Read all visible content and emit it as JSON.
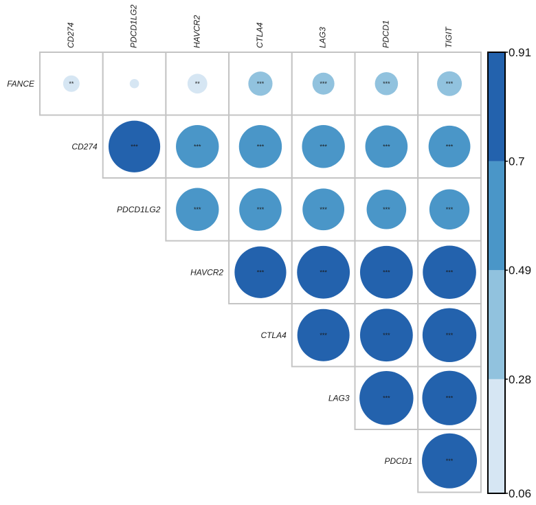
{
  "chart_data": {
    "type": "heatmap",
    "subtype": "correlation-circle-upper-triangle",
    "title": "",
    "columns": [
      "CD274",
      "PDCD1LG2",
      "HAVCR2",
      "CTLA4",
      "LAG3",
      "PDCD1",
      "TIGIT"
    ],
    "rows": [
      "FANCE",
      "CD274",
      "PDCD1LG2",
      "HAVCR2",
      "CTLA4",
      "LAG3",
      "PDCD1"
    ],
    "cells": [
      {
        "row": "FANCE",
        "col": "CD274",
        "value": 0.21,
        "sig": "**"
      },
      {
        "row": "FANCE",
        "col": "PDCD1LG2",
        "value": 0.08,
        "sig": ""
      },
      {
        "row": "FANCE",
        "col": "HAVCR2",
        "value": 0.27,
        "sig": "**"
      },
      {
        "row": "FANCE",
        "col": "CTLA4",
        "value": 0.35,
        "sig": "***"
      },
      {
        "row": "FANCE",
        "col": "LAG3",
        "value": 0.31,
        "sig": "***"
      },
      {
        "row": "FANCE",
        "col": "PDCD1",
        "value": 0.33,
        "sig": "***"
      },
      {
        "row": "FANCE",
        "col": "TIGIT",
        "value": 0.36,
        "sig": "***"
      },
      {
        "row": "CD274",
        "col": "PDCD1LG2",
        "value": 0.85,
        "sig": "***"
      },
      {
        "row": "CD274",
        "col": "HAVCR2",
        "value": 0.69,
        "sig": "***"
      },
      {
        "row": "CD274",
        "col": "CTLA4",
        "value": 0.69,
        "sig": "***"
      },
      {
        "row": "CD274",
        "col": "LAG3",
        "value": 0.69,
        "sig": "***"
      },
      {
        "row": "CD274",
        "col": "PDCD1",
        "value": 0.68,
        "sig": "***"
      },
      {
        "row": "CD274",
        "col": "TIGIT",
        "value": 0.67,
        "sig": "***"
      },
      {
        "row": "PDCD1LG2",
        "col": "HAVCR2",
        "value": 0.69,
        "sig": "***"
      },
      {
        "row": "PDCD1LG2",
        "col": "CTLA4",
        "value": 0.68,
        "sig": "***"
      },
      {
        "row": "PDCD1LG2",
        "col": "LAG3",
        "value": 0.67,
        "sig": "***"
      },
      {
        "row": "PDCD1LG2",
        "col": "PDCD1",
        "value": 0.63,
        "sig": "***"
      },
      {
        "row": "PDCD1LG2",
        "col": "TIGIT",
        "value": 0.64,
        "sig": "***"
      },
      {
        "row": "HAVCR2",
        "col": "CTLA4",
        "value": 0.85,
        "sig": "***"
      },
      {
        "row": "HAVCR2",
        "col": "LAG3",
        "value": 0.87,
        "sig": "***"
      },
      {
        "row": "HAVCR2",
        "col": "PDCD1",
        "value": 0.87,
        "sig": "***"
      },
      {
        "row": "HAVCR2",
        "col": "TIGIT",
        "value": 0.88,
        "sig": "***"
      },
      {
        "row": "CTLA4",
        "col": "LAG3",
        "value": 0.86,
        "sig": "***"
      },
      {
        "row": "CTLA4",
        "col": "PDCD1",
        "value": 0.87,
        "sig": "***"
      },
      {
        "row": "CTLA4",
        "col": "TIGIT",
        "value": 0.89,
        "sig": "***"
      },
      {
        "row": "LAG3",
        "col": "PDCD1",
        "value": 0.89,
        "sig": "***"
      },
      {
        "row": "LAG3",
        "col": "TIGIT",
        "value": 0.9,
        "sig": "***"
      },
      {
        "row": "PDCD1",
        "col": "TIGIT",
        "value": 0.91,
        "sig": "***"
      }
    ],
    "colorbar": {
      "min": 0.06,
      "max": 0.91,
      "ticks": [
        "0.91",
        "0.7",
        "0.49",
        "0.28",
        "0.06"
      ],
      "bins": [
        {
          "from": 0.06,
          "to": 0.28,
          "color": "#d6e6f3"
        },
        {
          "from": 0.28,
          "to": 0.49,
          "color": "#91c2de"
        },
        {
          "from": 0.49,
          "to": 0.7,
          "color": "#4a96c8"
        },
        {
          "from": 0.7,
          "to": 0.91,
          "color": "#2362ad"
        }
      ],
      "placement": "right"
    }
  }
}
